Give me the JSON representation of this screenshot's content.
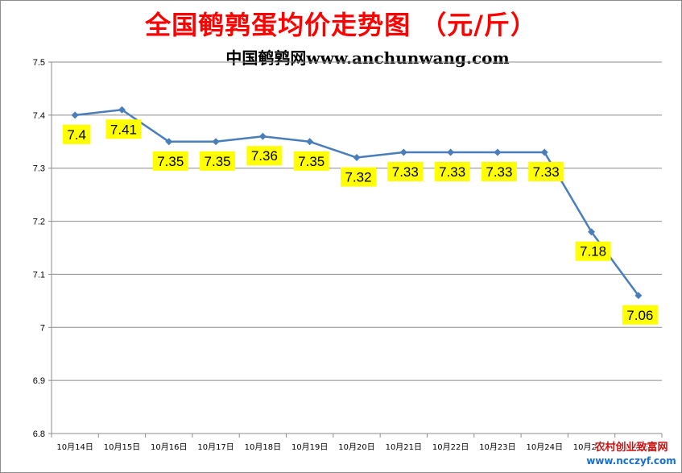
{
  "chart_data": {
    "type": "line",
    "title": "全国鹌鹑蛋均价走势图 （元/斤）",
    "subtitle": "中国鹌鹑网www.anchunwang.com",
    "categories": [
      "10月14日",
      "10月15日",
      "10月16日",
      "10月17日",
      "10月18日",
      "10月19日",
      "10月20日",
      "10月21日",
      "10月22日",
      "10月23日",
      "10月24日",
      "10月25日",
      "10月26日"
    ],
    "series": [
      {
        "values": [
          7.4,
          7.41,
          7.35,
          7.35,
          7.36,
          7.35,
          7.32,
          7.33,
          7.33,
          7.33,
          7.33,
          7.18,
          7.06
        ]
      }
    ],
    "data_labels": [
      "7.4",
      "7.41",
      "7.35",
      "7.35",
      "7.36",
      "7.35",
      "7.32",
      "7.33",
      "7.33",
      "7.33",
      "7.33",
      "7.18",
      "7.06"
    ],
    "y_ticks": [
      "6.8",
      "6.9",
      "7",
      "7.1",
      "7.2",
      "7.3",
      "7.4",
      "7.5"
    ],
    "ylim": [
      6.8,
      7.5
    ],
    "xlabel": "",
    "ylabel": "",
    "grid": true,
    "legend": "none",
    "line_color": "#4a7ebb",
    "label_bg_color": "#ffff00"
  },
  "watermark": {
    "name": "农村创业致富网",
    "url": "www.ncczyf.com"
  }
}
